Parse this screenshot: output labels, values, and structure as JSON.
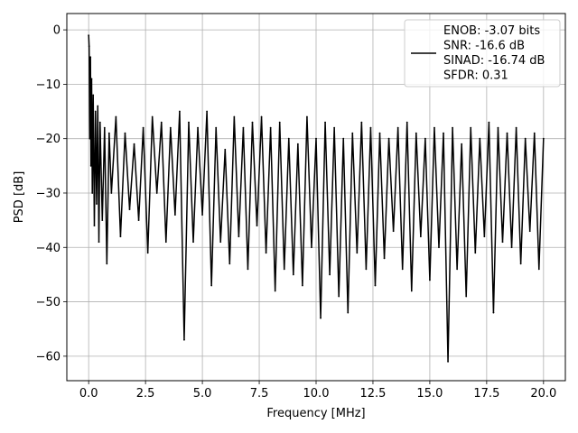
{
  "chart_data": {
    "type": "line",
    "title": "",
    "xlabel": "Frequency [MHz]",
    "ylabel": "PSD [dB]",
    "xlim": [
      -0.96,
      20.96
    ],
    "ylim": [
      -64.5,
      3.0
    ],
    "grid": true,
    "legend_position": "top-right",
    "x_ticks": [
      {
        "value": 0.0,
        "label": "0.0"
      },
      {
        "value": 2.5,
        "label": "2.5"
      },
      {
        "value": 5.0,
        "label": "5.0"
      },
      {
        "value": 7.5,
        "label": "7.5"
      },
      {
        "value": 10.0,
        "label": "10.0"
      },
      {
        "value": 12.5,
        "label": "12.5"
      },
      {
        "value": 15.0,
        "label": "15.0"
      },
      {
        "value": 17.5,
        "label": "17.5"
      },
      {
        "value": 20.0,
        "label": "20.0"
      }
    ],
    "y_ticks": [
      {
        "value": 0,
        "label": "0"
      },
      {
        "value": -10,
        "label": "−10"
      },
      {
        "value": -20,
        "label": "−20"
      },
      {
        "value": -30,
        "label": "−30"
      },
      {
        "value": -40,
        "label": "−40"
      },
      {
        "value": -50,
        "label": "−50"
      },
      {
        "value": -60,
        "label": "−60"
      }
    ],
    "legend_lines": [
      "ENOB: -3.07 bits",
      "SNR: -16.6 dB",
      "SINAD: -16.74 dB",
      "SFDR: 0.31"
    ],
    "series_color": "#000000",
    "series": [
      {
        "x": [
          0.0,
          0.02,
          0.05,
          0.08,
          0.1,
          0.13,
          0.16,
          0.2,
          0.25,
          0.3,
          0.35,
          0.4,
          0.45,
          0.5,
          0.6,
          0.7,
          0.8,
          0.9,
          1.0,
          1.2,
          1.4,
          1.6,
          1.8,
          2.0,
          2.2,
          2.4,
          2.6,
          2.8,
          3.0,
          3.2,
          3.4,
          3.6,
          3.8,
          4.0,
          4.2,
          4.4,
          4.6,
          4.8,
          5.0,
          5.2,
          5.4,
          5.6,
          5.8,
          6.0,
          6.2,
          6.4,
          6.6,
          6.8,
          7.0,
          7.2,
          7.4,
          7.6,
          7.8,
          8.0,
          8.2,
          8.4,
          8.6,
          8.8,
          9.0,
          9.2,
          9.4,
          9.6,
          9.8,
          10.0,
          10.2,
          10.4,
          10.6,
          10.8,
          11.0,
          11.2,
          11.4,
          11.6,
          11.8,
          12.0,
          12.2,
          12.4,
          12.6,
          12.8,
          13.0,
          13.2,
          13.4,
          13.6,
          13.8,
          14.0,
          14.2,
          14.4,
          14.6,
          14.8,
          15.0,
          15.2,
          15.4,
          15.6,
          15.8,
          16.0,
          16.2,
          16.4,
          16.6,
          16.8,
          17.0,
          17.2,
          17.4,
          17.6,
          17.8,
          18.0,
          18.2,
          18.4,
          18.6,
          18.8,
          19.0,
          19.2,
          19.4,
          19.6,
          19.8,
          20.0
        ],
        "y": [
          -1,
          -3,
          -20,
          -5,
          -25,
          -9,
          -30,
          -12,
          -36,
          -15,
          -32,
          -14,
          -39,
          -17,
          -35,
          -18,
          -43,
          -19,
          -30,
          -16,
          -38,
          -19,
          -33,
          -21,
          -35,
          -18,
          -41,
          -16,
          -30,
          -17,
          -39,
          -18,
          -34,
          -15,
          -57,
          -17,
          -39,
          -18,
          -34,
          -15,
          -47,
          -18,
          -39,
          -22,
          -43,
          -16,
          -38,
          -18,
          -44,
          -17,
          -36,
          -16,
          -41,
          -18,
          -48,
          -17,
          -44,
          -20,
          -45,
          -21,
          -47,
          -16,
          -40,
          -20,
          -53,
          -17,
          -45,
          -18,
          -49,
          -20,
          -52,
          -19,
          -41,
          -17,
          -44,
          -18,
          -47,
          -19,
          -42,
          -20,
          -37,
          -18,
          -44,
          -17,
          -48,
          -19,
          -38,
          -20,
          -46,
          -18,
          -40,
          -19,
          -61,
          -18,
          -44,
          -21,
          -49,
          -18,
          -41,
          -20,
          -38,
          -17,
          -52,
          -18,
          -39,
          -19,
          -40,
          -18,
          -43,
          -20,
          -37,
          -19,
          -44,
          -20
        ]
      }
    ]
  }
}
